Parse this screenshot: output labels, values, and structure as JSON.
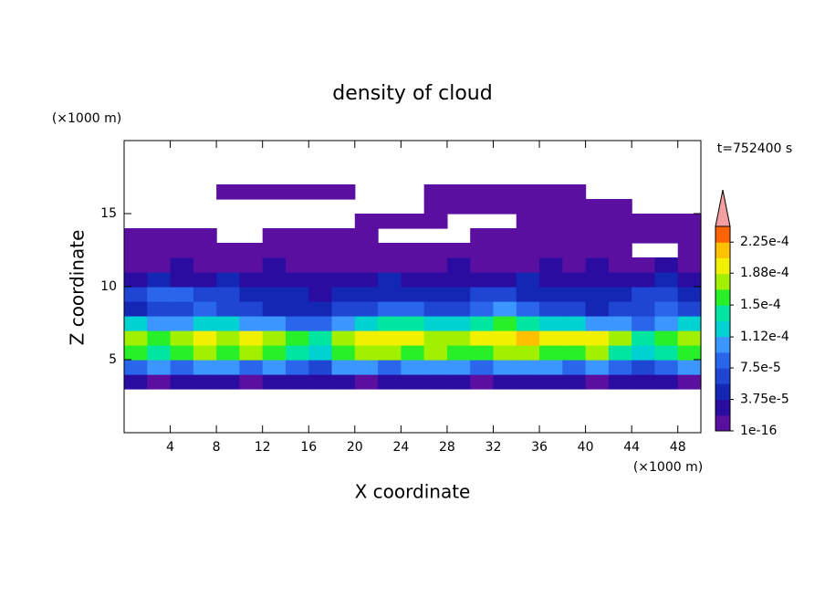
{
  "chart_data": {
    "type": "contour",
    "title": "density of cloud",
    "xlabel": "X coordinate",
    "ylabel": "Z coordinate",
    "xunit": "(×1000 m)",
    "yunit": "(×1000 m)",
    "annotation": "t=752400 s",
    "xlim": [
      0,
      50
    ],
    "ylim": [
      0,
      20
    ],
    "xticks": [
      4,
      8,
      12,
      16,
      20,
      24,
      28,
      32,
      36,
      40,
      44,
      48
    ],
    "yticks": [
      5,
      10,
      15
    ],
    "xbins": [
      0,
      2,
      4,
      6,
      8,
      10,
      12,
      14,
      16,
      18,
      20,
      22,
      24,
      26,
      28,
      30,
      32,
      34,
      36,
      38,
      40,
      42,
      44,
      46,
      48,
      50
    ],
    "ybins": [
      3,
      4,
      5,
      6,
      7,
      8,
      9,
      10,
      11,
      12,
      13,
      14,
      15,
      16,
      17
    ],
    "z": [
      [
        3e-05,
        1e-05,
        3e-05,
        3e-05,
        3e-05,
        1e-05,
        3e-05,
        3e-05,
        3e-05,
        3e-05,
        1e-05,
        3e-05,
        3e-05,
        3e-05,
        3e-05,
        1e-05,
        3e-05,
        3e-05,
        3e-05,
        3e-05,
        1e-05,
        3e-05,
        3e-05,
        3e-05,
        1e-05
      ],
      [
        8e-05,
        0.0001,
        8e-05,
        0.0001,
        0.0001,
        8e-05,
        0.0001,
        8e-05,
        6e-05,
        0.0001,
        0.0001,
        8e-05,
        0.0001,
        0.0001,
        0.0001,
        8e-05,
        0.0001,
        0.0001,
        0.0001,
        8e-05,
        0.0001,
        8e-05,
        6e-05,
        8e-05,
        0.0001
      ],
      [
        0.00016,
        0.00014,
        0.00016,
        0.00018,
        0.00016,
        0.00018,
        0.00016,
        0.00014,
        0.00012,
        0.00016,
        0.00018,
        0.00018,
        0.00016,
        0.00018,
        0.00016,
        0.00016,
        0.00018,
        0.00018,
        0.00016,
        0.00016,
        0.00018,
        0.00014,
        0.00012,
        0.00014,
        0.00016
      ],
      [
        0.00018,
        0.00016,
        0.00018,
        0.0002,
        0.00018,
        0.0002,
        0.00018,
        0.00016,
        0.00014,
        0.00018,
        0.0002,
        0.0002,
        0.0002,
        0.00018,
        0.00018,
        0.0002,
        0.0002,
        0.00022,
        0.0002,
        0.0002,
        0.0002,
        0.00018,
        0.00014,
        0.00016,
        0.00018
      ],
      [
        0.00012,
        0.0001,
        0.0001,
        0.00012,
        0.00012,
        0.0001,
        0.0001,
        8e-05,
        8e-05,
        0.0001,
        0.00012,
        0.00014,
        0.00014,
        0.00012,
        0.00012,
        0.00014,
        0.00016,
        0.00014,
        0.00012,
        0.00012,
        0.0001,
        0.0001,
        8e-05,
        0.0001,
        0.00012
      ],
      [
        5e-05,
        6e-05,
        6e-05,
        8e-05,
        6e-05,
        6e-05,
        5e-05,
        5e-05,
        5e-05,
        6e-05,
        6e-05,
        8e-05,
        8e-05,
        6e-05,
        6e-05,
        8e-05,
        0.0001,
        8e-05,
        6e-05,
        6e-05,
        5e-05,
        6e-05,
        6e-05,
        8e-05,
        6e-05
      ],
      [
        6e-05,
        8e-05,
        8e-05,
        6e-05,
        6e-05,
        5e-05,
        5e-05,
        5e-05,
        3e-05,
        5e-05,
        5e-05,
        5e-05,
        5e-05,
        5e-05,
        5e-05,
        6e-05,
        6e-05,
        5e-05,
        5e-05,
        5e-05,
        5e-05,
        5e-05,
        6e-05,
        6e-05,
        5e-05
      ],
      [
        3e-05,
        5e-05,
        3e-05,
        3e-05,
        5e-05,
        3e-05,
        3e-05,
        3e-05,
        3e-05,
        3e-05,
        3e-05,
        5e-05,
        3e-05,
        3e-05,
        3e-05,
        3e-05,
        3e-05,
        5e-05,
        3e-05,
        3e-05,
        3e-05,
        3e-05,
        3e-05,
        5e-05,
        3e-05
      ],
      [
        1e-05,
        1e-05,
        3e-05,
        1e-05,
        1e-05,
        1e-05,
        3e-05,
        1e-05,
        1e-05,
        1e-05,
        1e-05,
        1e-05,
        1e-05,
        1e-05,
        3e-05,
        1e-05,
        1e-05,
        1e-05,
        3e-05,
        1e-05,
        3e-05,
        1e-05,
        1e-05,
        3e-05,
        1e-05
      ],
      [
        1e-05,
        1e-05,
        1e-05,
        1e-05,
        1e-05,
        1e-05,
        1e-05,
        1e-05,
        1e-05,
        1e-05,
        1e-05,
        1e-05,
        1e-05,
        1e-05,
        1e-05,
        1e-05,
        1e-05,
        1e-05,
        1e-05,
        1e-05,
        1e-05,
        1e-05,
        null,
        null,
        1e-05
      ],
      [
        1e-05,
        1e-05,
        1e-05,
        1e-05,
        null,
        null,
        1e-05,
        1e-05,
        1e-05,
        1e-05,
        1e-05,
        null,
        null,
        null,
        null,
        1e-05,
        1e-05,
        1e-05,
        1e-05,
        1e-05,
        1e-05,
        1e-05,
        1e-05,
        1e-05,
        1e-05
      ],
      [
        null,
        null,
        null,
        null,
        null,
        null,
        null,
        null,
        null,
        null,
        1e-05,
        1e-05,
        1e-05,
        1e-05,
        null,
        null,
        null,
        1e-05,
        1e-05,
        1e-05,
        1e-05,
        1e-05,
        1e-05,
        1e-05,
        1e-05
      ],
      [
        null,
        null,
        null,
        null,
        null,
        null,
        null,
        null,
        null,
        null,
        null,
        null,
        null,
        1e-05,
        1e-05,
        1e-05,
        1e-05,
        1e-05,
        1e-05,
        1e-05,
        1e-05,
        1e-05,
        null,
        null,
        null
      ],
      [
        null,
        null,
        null,
        null,
        1e-05,
        1e-05,
        1e-05,
        1e-05,
        1e-05,
        1e-05,
        null,
        null,
        null,
        1e-05,
        1e-05,
        1e-05,
        1e-05,
        1e-05,
        1e-05,
        1e-05,
        null,
        null,
        null,
        null,
        null
      ]
    ],
    "clim": [
      1e-16,
      0.00024375
    ],
    "colors": [
      "#5a0fa0",
      "#2a0ca0",
      "#1426b4",
      "#1e46d2",
      "#2a66ec",
      "#3c96ff",
      "#00d2d2",
      "#00e6a0",
      "#28f028",
      "#a0f000",
      "#f0f000",
      "#ffc000",
      "#ff6400"
    ],
    "extend_color": "#f4a0a0",
    "cticks": [
      1e-16,
      {
        "value": 3.75e-05,
        "label": "3.75e-5"
      },
      {
        "value": 7.5e-05,
        "label": "7.5e-5"
      },
      {
        "value": 0.000112,
        "label": "1.12e-4"
      },
      {
        "value": 0.00015,
        "label": "1.5e-4"
      },
      {
        "value": 0.000188,
        "label": "1.88e-4"
      },
      {
        "value": 0.000225,
        "label": "2.25e-4"
      }
    ]
  }
}
